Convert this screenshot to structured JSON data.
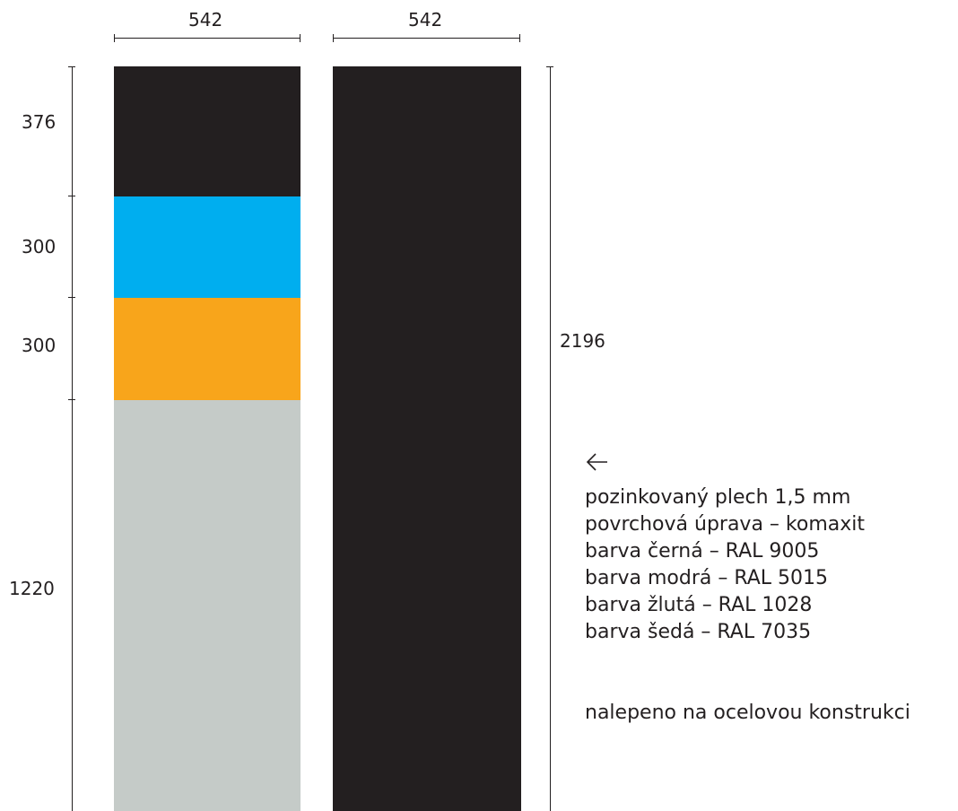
{
  "top_dims": {
    "left_width": "542",
    "right_width": "542"
  },
  "left_dims": {
    "black_height": "376",
    "blue_height": "300",
    "yellow_height": "300",
    "grey_height": "1220"
  },
  "right_dims": {
    "total_height": "2196"
  },
  "colors": {
    "black": "#231f20",
    "blue": "#00aeef",
    "yellow": "#f8a51b",
    "grey": "#c5cbc8",
    "line": "#231f20"
  },
  "notes": {
    "arrow_icon": "arrow-left-icon",
    "lines": [
      "pozinkovaný plech 1,5 mm",
      "povrchová úprava – komaxit",
      "barva černá – RAL 9005",
      "barva modrá – RAL 5015",
      "barva žlutá – RAL 1028",
      "barva šedá – RAL 7035"
    ],
    "footer": "nalepeno na ocelovou konstrukci"
  }
}
